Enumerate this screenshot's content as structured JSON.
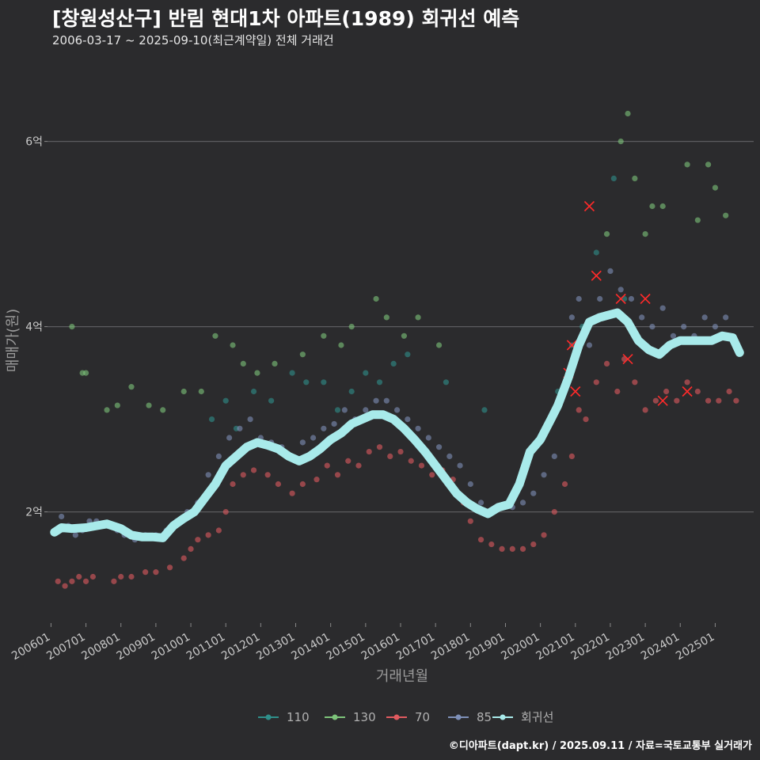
{
  "title": "[창원성산구] 반림 현대1차 아파트(1989) 회귀선 예측",
  "subtitle": "2006-03-17 ~ 2025-09-10(최근계약일) 전체 거래건",
  "footer": "©디아파트(dapt.kr) / 2025.09.11 / 자료=국토교통부 실거래가",
  "chart_data": {
    "type": "scatter",
    "xlabel": "거래년월",
    "ylabel": "매매가(원)",
    "x_ticks": [
      "200601",
      "200701",
      "200801",
      "200901",
      "201001",
      "201101",
      "201201",
      "201301",
      "201401",
      "201501",
      "201601",
      "201701",
      "201801",
      "201901",
      "202001",
      "202101",
      "202201",
      "202301",
      "202401",
      "202501"
    ],
    "x_range": [
      2005.9,
      2026.1
    ],
    "y_ticks": [
      {
        "value": 2,
        "label": "2억"
      },
      {
        "value": 4,
        "label": "4억"
      },
      {
        "value": 6,
        "label": "6억"
      }
    ],
    "y_range": [
      0.8,
      6.8
    ],
    "y_unit": "억",
    "grid": "horizontal",
    "legend_position": "bottom",
    "colors": {
      "110": "#2f8f8a",
      "130": "#7dc47a",
      "70": "#e05a5f",
      "85": "#7e90b8",
      "regression": "#a8eaea"
    },
    "series": [
      {
        "name": "110",
        "key": "110",
        "x": [
          2010.6,
          2011.0,
          2011.3,
          2011.8,
          2012.3,
          2012.9,
          2013.3,
          2013.8,
          2014.2,
          2014.6,
          2015.0,
          2015.4,
          2015.8,
          2016.2,
          2017.3,
          2018.4,
          2020.5,
          2020.9,
          2021.2,
          2021.6,
          2022.1,
          2022.4
        ],
        "y": [
          3.0,
          3.2,
          2.9,
          3.3,
          3.2,
          3.5,
          3.4,
          3.4,
          3.1,
          3.3,
          3.5,
          3.4,
          3.6,
          3.7,
          3.4,
          3.1,
          3.3,
          3.8,
          4.0,
          4.8,
          5.6,
          4.3
        ]
      },
      {
        "name": "130",
        "key": "130",
        "x": [
          2006.6,
          2006.9,
          2007.0,
          2007.6,
          2007.9,
          2008.3,
          2008.8,
          2009.2,
          2009.8,
          2010.3,
          2010.7,
          2011.2,
          2011.5,
          2011.9,
          2012.4,
          2013.2,
          2013.8,
          2014.3,
          2014.6,
          2015.3,
          2015.6,
          2016.1,
          2016.5,
          2017.1,
          2021.9,
          2022.3,
          2022.5,
          2022.7,
          2023.0,
          2023.2,
          2023.5,
          2024.2,
          2024.5,
          2024.8,
          2025.0,
          2025.3
        ],
        "y": [
          4.0,
          3.5,
          3.5,
          3.1,
          3.15,
          3.35,
          3.15,
          3.1,
          3.3,
          3.3,
          3.9,
          3.8,
          3.6,
          3.5,
          3.6,
          3.7,
          3.9,
          3.8,
          4.0,
          4.3,
          4.1,
          3.9,
          4.1,
          3.8,
          5.0,
          6.0,
          6.3,
          5.6,
          5.0,
          5.3,
          5.3,
          5.75,
          5.15,
          5.75,
          5.5,
          5.2
        ]
      },
      {
        "name": "70",
        "key": "70",
        "x": [
          2006.2,
          2006.4,
          2006.6,
          2006.8,
          2007.0,
          2007.2,
          2007.8,
          2008.0,
          2008.3,
          2008.7,
          2009.0,
          2009.4,
          2009.8,
          2010.0,
          2010.2,
          2010.5,
          2010.8,
          2011.0,
          2011.2,
          2011.5,
          2011.8,
          2012.2,
          2012.5,
          2012.9,
          2013.2,
          2013.6,
          2013.9,
          2014.2,
          2014.5,
          2014.8,
          2015.1,
          2015.4,
          2015.7,
          2016.0,
          2016.3,
          2016.6,
          2016.9,
          2017.2,
          2017.5,
          2017.8,
          2018.0,
          2018.3,
          2018.6,
          2018.9,
          2019.2,
          2019.5,
          2019.8,
          2020.1,
          2020.4,
          2020.7,
          2020.9,
          2021.1,
          2021.3,
          2021.6,
          2021.9,
          2022.2,
          2022.4,
          2022.7,
          2023.0,
          2023.3,
          2023.6,
          2023.9,
          2024.2,
          2024.5,
          2024.8,
          2025.1,
          2025.4,
          2025.6
        ],
        "y": [
          1.25,
          1.2,
          1.25,
          1.3,
          1.25,
          1.3,
          1.25,
          1.3,
          1.3,
          1.35,
          1.35,
          1.4,
          1.5,
          1.6,
          1.7,
          1.75,
          1.8,
          2.0,
          2.3,
          2.4,
          2.45,
          2.4,
          2.3,
          2.2,
          2.3,
          2.35,
          2.5,
          2.4,
          2.55,
          2.5,
          2.65,
          2.7,
          2.6,
          2.65,
          2.55,
          2.5,
          2.4,
          2.45,
          2.35,
          2.1,
          1.9,
          1.7,
          1.65,
          1.6,
          1.6,
          1.6,
          1.65,
          1.75,
          2.0,
          2.3,
          2.6,
          3.1,
          3.0,
          3.4,
          3.6,
          3.3,
          3.65,
          3.4,
          3.1,
          3.2,
          3.3,
          3.2,
          3.4,
          3.3,
          3.2,
          3.2,
          3.3,
          3.2
        ]
      },
      {
        "name": "85",
        "key": "85",
        "x": [
          2006.1,
          2006.3,
          2006.5,
          2006.7,
          2006.9,
          2007.1,
          2007.3,
          2007.6,
          2007.9,
          2008.1,
          2008.4,
          2008.7,
          2009.0,
          2009.3,
          2009.6,
          2009.9,
          2010.2,
          2010.5,
          2010.8,
          2011.1,
          2011.4,
          2011.7,
          2012.0,
          2012.3,
          2012.6,
          2012.9,
          2013.2,
          2013.5,
          2013.8,
          2014.1,
          2014.4,
          2014.7,
          2015.0,
          2015.3,
          2015.6,
          2015.9,
          2016.2,
          2016.5,
          2016.8,
          2017.1,
          2017.4,
          2017.7,
          2018.0,
          2018.3,
          2018.6,
          2018.9,
          2019.2,
          2019.5,
          2019.8,
          2020.1,
          2020.4,
          2020.7,
          2020.9,
          2021.1,
          2021.4,
          2021.7,
          2022.0,
          2022.3,
          2022.6,
          2022.9,
          2023.2,
          2023.5,
          2023.8,
          2024.1,
          2024.4,
          2024.7,
          2025.0,
          2025.3,
          2025.5
        ],
        "y": [
          1.8,
          1.95,
          1.85,
          1.75,
          1.8,
          1.9,
          1.9,
          1.85,
          1.8,
          1.75,
          1.7,
          1.75,
          1.75,
          1.8,
          1.9,
          2.0,
          2.1,
          2.4,
          2.6,
          2.8,
          2.9,
          3.0,
          2.8,
          2.75,
          2.7,
          2.6,
          2.75,
          2.8,
          2.9,
          2.95,
          3.1,
          3.0,
          3.1,
          3.2,
          3.2,
          3.1,
          3.0,
          2.9,
          2.8,
          2.7,
          2.6,
          2.5,
          2.3,
          2.1,
          2.0,
          2.05,
          2.05,
          2.1,
          2.2,
          2.4,
          2.6,
          3.3,
          4.1,
          4.3,
          3.8,
          4.3,
          4.6,
          4.4,
          4.3,
          4.1,
          4.0,
          4.2,
          3.9,
          4.0,
          3.9,
          4.1,
          4.0,
          4.1,
          3.85
        ]
      },
      {
        "name": "회귀선",
        "key": "regression",
        "x": [
          2006.1,
          2006.3,
          2006.6,
          2007.0,
          2007.3,
          2007.6,
          2008.0,
          2008.3,
          2008.6,
          2008.9,
          2009.2,
          2009.5,
          2009.8,
          2010.1,
          2010.4,
          2010.7,
          2011.0,
          2011.3,
          2011.6,
          2011.9,
          2012.2,
          2012.5,
          2012.8,
          2013.1,
          2013.4,
          2013.7,
          2014.0,
          2014.3,
          2014.6,
          2014.9,
          2015.2,
          2015.5,
          2015.8,
          2016.1,
          2016.4,
          2016.7,
          2017.0,
          2017.3,
          2017.6,
          2017.9,
          2018.2,
          2018.5,
          2018.8,
          2019.1,
          2019.4,
          2019.7,
          2020.0,
          2020.3,
          2020.5,
          2020.8,
          2021.1,
          2021.4,
          2021.7,
          2021.9,
          2022.2,
          2022.5,
          2022.8,
          2023.1,
          2023.4,
          2023.7,
          2024.0,
          2024.3,
          2024.6,
          2024.9,
          2025.2,
          2025.5,
          2025.7
        ],
        "y": [
          1.78,
          1.83,
          1.82,
          1.83,
          1.85,
          1.87,
          1.82,
          1.75,
          1.73,
          1.73,
          1.72,
          1.85,
          1.93,
          2.0,
          2.15,
          2.3,
          2.5,
          2.6,
          2.7,
          2.75,
          2.72,
          2.68,
          2.6,
          2.55,
          2.6,
          2.68,
          2.78,
          2.85,
          2.95,
          3.0,
          3.05,
          3.05,
          3.0,
          2.9,
          2.78,
          2.65,
          2.5,
          2.35,
          2.2,
          2.1,
          2.03,
          1.98,
          2.05,
          2.08,
          2.3,
          2.65,
          2.78,
          3.0,
          3.15,
          3.45,
          3.8,
          4.05,
          4.1,
          4.12,
          4.15,
          4.05,
          3.85,
          3.75,
          3.7,
          3.8,
          3.85,
          3.85,
          3.85,
          3.85,
          3.9,
          3.88,
          3.72
        ]
      }
    ],
    "highlights": {
      "x": [
        2020.8,
        2020.9,
        2021.0,
        2021.4,
        2021.6,
        2022.3,
        2022.5,
        2023.0,
        2023.5,
        2024.2
      ],
      "y": [
        3.5,
        3.8,
        3.3,
        5.3,
        4.55,
        4.3,
        3.65,
        4.3,
        3.2,
        3.3
      ]
    }
  }
}
